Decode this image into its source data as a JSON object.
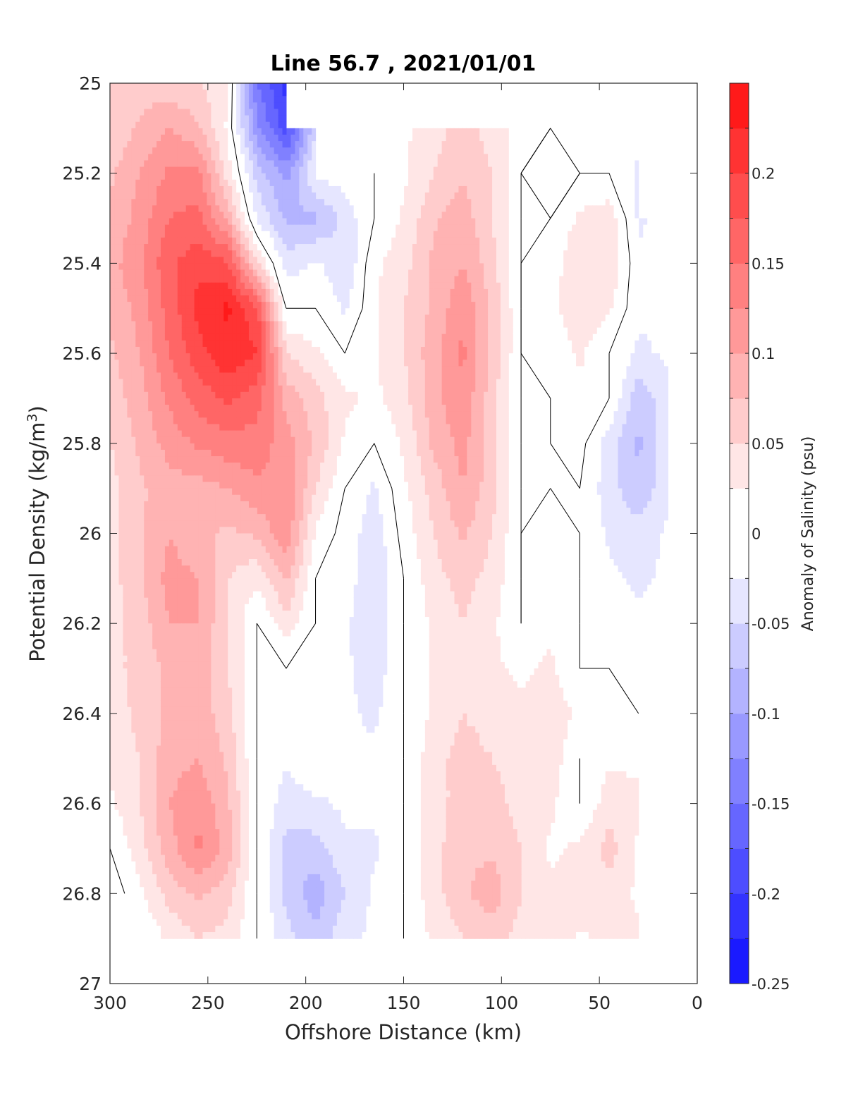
{
  "chart_data": {
    "type": "heatmap",
    "title": "Line 56.7 , 2021/01/01",
    "xlabel": "Offshore Distance (km)",
    "ylabel_main": "Potential Density (kg/m",
    "ylabel_sup": "3",
    "ylabel_end": ")",
    "colorbar_label": "Anomaly of Salinity (psu)",
    "xlim": [
      300,
      0
    ],
    "ylim": [
      25,
      27
    ],
    "x_ticks": [
      300,
      250,
      200,
      150,
      100,
      50,
      0
    ],
    "x_tick_labels": [
      "300",
      "250",
      "200",
      "150",
      "100",
      "50",
      "0"
    ],
    "y_ticks": [
      25,
      25.2,
      25.4,
      25.6,
      25.8,
      26,
      26.2,
      26.4,
      26.6,
      26.8,
      27
    ],
    "y_tick_labels": [
      "25",
      "25.2",
      "25.4",
      "25.6",
      "25.8",
      "26",
      "26.2",
      "26.4",
      "26.6",
      "26.8",
      "27"
    ],
    "colorbar": {
      "range": [
        -0.25,
        0.25
      ],
      "tick_values": [
        -0.25,
        -0.2,
        -0.15,
        -0.1,
        -0.05,
        0,
        0.05,
        0.1,
        0.15,
        0.2
      ],
      "tick_labels": [
        "-0.25",
        "-0.2",
        "-0.15",
        "-0.1",
        "-0.05",
        "0",
        "0.05",
        "0.1",
        "0.15",
        "0.2"
      ],
      "levels": [
        -0.25,
        -0.225,
        -0.2,
        -0.175,
        -0.15,
        -0.125,
        -0.1,
        -0.075,
        -0.05,
        -0.025,
        0.025,
        0.05,
        0.075,
        0.1,
        0.125,
        0.15,
        0.175,
        0.2,
        0.225,
        0.25
      ],
      "colors": [
        "#0000ff",
        "#1a1aff",
        "#3333ff",
        "#4d4dff",
        "#6666ff",
        "#8080ff",
        "#9999ff",
        "#b3b3ff",
        "#ccccff",
        "#e6e6ff",
        "#ffffff",
        "#ffe6e6",
        "#ffcccc",
        "#ffb3b3",
        "#ff9999",
        "#ff8080",
        "#ff6666",
        "#ff4d4d",
        "#ff3333",
        "#ff1a1a",
        "#ff0000"
      ]
    },
    "grid": false,
    "legend": "none",
    "field": {
      "x": [
        0,
        15,
        30,
        45,
        60,
        75,
        90,
        105,
        120,
        135,
        150,
        165,
        180,
        195,
        210,
        225,
        240,
        255,
        270,
        285,
        300
      ],
      "y": [
        25,
        25.1,
        25.2,
        25.3,
        25.4,
        25.5,
        25.6,
        25.7,
        25.8,
        25.9,
        26,
        26.1,
        26.2,
        26.3,
        26.4,
        26.5,
        26.6,
        26.7,
        26.8,
        26.9
      ],
      "z": [
        [
          null,
          null,
          null,
          null,
          null,
          null,
          null,
          null,
          null,
          null,
          null,
          null,
          null,
          null,
          -0.21,
          -0.15,
          0.03,
          0.05,
          0.06,
          0.06,
          0.05
        ],
        [
          null,
          null,
          -0.02,
          0.0,
          -0.02,
          0.0,
          0.01,
          0.04,
          0.06,
          0.04,
          0.02,
          null,
          null,
          -0.05,
          -0.19,
          -0.12,
          0.02,
          0.08,
          0.1,
          0.08,
          0.05
        ],
        [
          null,
          null,
          -0.03,
          0.0,
          0.0,
          0.01,
          0.0,
          0.05,
          0.07,
          0.05,
          0.02,
          0.0,
          -0.01,
          -0.02,
          -0.11,
          -0.06,
          0.04,
          0.13,
          0.13,
          0.1,
          0.07
        ],
        [
          null,
          -0.01,
          -0.03,
          0.04,
          0.03,
          0.0,
          0.0,
          0.05,
          0.09,
          0.07,
          0.03,
          0.0,
          -0.04,
          -0.08,
          -0.08,
          -0.03,
          0.09,
          0.16,
          0.15,
          0.11,
          0.08
        ],
        [
          null,
          -0.01,
          -0.02,
          0.05,
          0.05,
          0.01,
          0.0,
          0.06,
          0.1,
          0.08,
          0.04,
          0.02,
          -0.05,
          -0.02,
          -0.04,
          0.05,
          0.18,
          0.19,
          0.17,
          0.12,
          0.09
        ],
        [
          null,
          -0.02,
          -0.02,
          0.03,
          0.04,
          0.02,
          0.0,
          0.07,
          0.12,
          0.08,
          0.05,
          0.02,
          -0.03,
          0.0,
          0.0,
          0.18,
          0.23,
          0.21,
          0.16,
          0.11,
          0.08
        ],
        [
          null,
          -0.02,
          -0.03,
          0.0,
          0.03,
          0.01,
          0.0,
          0.07,
          0.13,
          0.09,
          0.05,
          0.02,
          0.0,
          0.03,
          0.05,
          0.2,
          0.22,
          0.19,
          0.15,
          0.1,
          0.07
        ],
        [
          null,
          -0.03,
          -0.07,
          0.0,
          0.02,
          0.0,
          0.0,
          0.06,
          0.12,
          0.09,
          0.04,
          0.02,
          0.03,
          0.06,
          0.09,
          0.16,
          0.18,
          0.16,
          0.13,
          0.09,
          0.06
        ],
        [
          null,
          -0.03,
          -0.08,
          -0.04,
          0.01,
          0.0,
          0.0,
          0.06,
          0.11,
          0.08,
          0.03,
          0.0,
          0.02,
          0.07,
          0.11,
          0.14,
          0.14,
          0.13,
          0.11,
          0.08,
          0.05
        ],
        [
          null,
          -0.03,
          -0.07,
          -0.04,
          0.0,
          0.0,
          0.0,
          0.06,
          0.1,
          0.06,
          0.02,
          -0.03,
          0.0,
          0.05,
          0.12,
          0.12,
          0.1,
          0.09,
          0.09,
          0.07,
          0.04
        ],
        [
          null,
          -0.02,
          -0.04,
          -0.03,
          0.0,
          0.01,
          0.0,
          0.05,
          0.08,
          0.05,
          0.01,
          -0.04,
          -0.01,
          0.02,
          0.12,
          0.08,
          0.07,
          0.08,
          0.1,
          0.07,
          0.04
        ],
        [
          null,
          -0.02,
          -0.03,
          -0.02,
          0.0,
          0.02,
          0.0,
          0.04,
          0.06,
          0.04,
          0.0,
          -0.05,
          -0.01,
          0.0,
          0.08,
          0.03,
          0.05,
          0.1,
          0.11,
          0.07,
          0.04
        ],
        [
          null,
          -0.01,
          -0.02,
          -0.01,
          0.0,
          0.02,
          0.0,
          0.03,
          0.05,
          0.03,
          0.0,
          -0.05,
          -0.02,
          0.0,
          0.04,
          0.0,
          0.05,
          0.1,
          0.1,
          0.06,
          0.04
        ],
        [
          null,
          null,
          -0.01,
          0.0,
          0.0,
          0.03,
          0.02,
          0.03,
          0.05,
          0.03,
          0.0,
          -0.04,
          -0.02,
          0.0,
          0.0,
          0.0,
          0.05,
          0.09,
          0.08,
          0.06,
          0.04
        ],
        [
          null,
          null,
          0.0,
          0.01,
          0.02,
          0.04,
          0.03,
          0.04,
          0.05,
          0.03,
          0.0,
          -0.03,
          -0.02,
          0.0,
          0.0,
          0.0,
          0.06,
          0.09,
          0.08,
          0.06,
          0.03
        ],
        [
          null,
          null,
          0.02,
          0.02,
          0.0,
          0.04,
          0.04,
          0.05,
          0.06,
          0.04,
          0.0,
          -0.02,
          -0.02,
          0.0,
          -0.02,
          0.0,
          0.07,
          0.1,
          0.09,
          0.05,
          0.03
        ],
        [
          null,
          null,
          0.03,
          0.04,
          0.0,
          0.03,
          0.04,
          0.06,
          0.06,
          0.04,
          0.0,
          -0.02,
          -0.02,
          -0.03,
          -0.04,
          0.0,
          0.08,
          0.12,
          0.1,
          0.05,
          0.02
        ],
        [
          null,
          null,
          0.02,
          0.06,
          0.03,
          0.02,
          0.05,
          0.07,
          0.07,
          0.04,
          0.0,
          -0.03,
          -0.03,
          -0.06,
          -0.06,
          0.0,
          0.09,
          0.13,
          0.09,
          0.04,
          0.0
        ],
        [
          null,
          null,
          0.02,
          0.04,
          0.05,
          0.03,
          0.05,
          0.09,
          0.07,
          0.04,
          0.0,
          -0.02,
          -0.05,
          -0.09,
          -0.06,
          0.0,
          0.06,
          0.08,
          0.06,
          0.02,
          -0.02
        ],
        [
          null,
          null,
          0.03,
          0.03,
          0.02,
          0.04,
          0.04,
          0.06,
          0.05,
          0.03,
          0.0,
          -0.02,
          -0.03,
          -0.07,
          -0.04,
          0.0,
          0.04,
          0.05,
          0.03,
          0.0,
          null
        ]
      ]
    }
  }
}
